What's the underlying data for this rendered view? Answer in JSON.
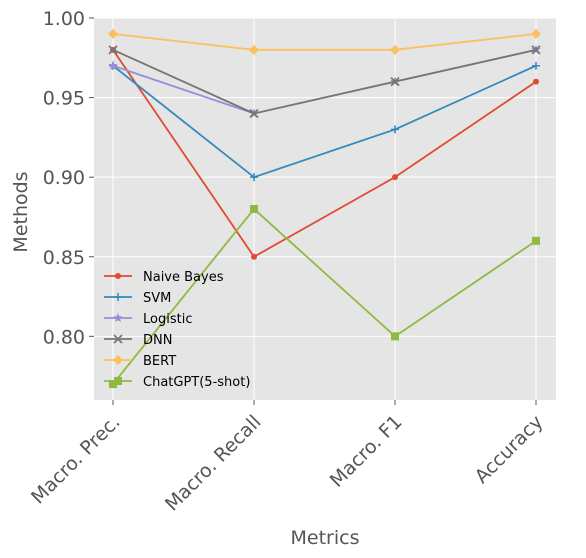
{
  "chart_data": {
    "type": "line",
    "categories": [
      "Macro. Prec.",
      "Macro. Recall",
      "Macro. F1",
      "Accuracy"
    ],
    "xlabel": "Metrics",
    "ylabel": "Methods",
    "ylim": [
      0.76,
      1.0
    ],
    "yticks": [
      "0.80",
      "0.85",
      "0.90",
      "0.95",
      "1.00"
    ],
    "grid": true,
    "legend": "lower-left",
    "series": [
      {
        "name": "Naive Bayes",
        "values": [
          0.98,
          0.85,
          0.9,
          0.96
        ],
        "color": "#E24A33",
        "marker": "dot"
      },
      {
        "name": "SVM",
        "values": [
          0.97,
          0.9,
          0.93,
          0.97
        ],
        "color": "#348ABD",
        "marker": "plus"
      },
      {
        "name": "Logistic",
        "values": [
          0.97,
          0.94,
          0.96,
          0.98
        ],
        "color": "#988ED5",
        "marker": "star"
      },
      {
        "name": "DNN",
        "values": [
          0.98,
          0.94,
          0.96,
          0.98
        ],
        "color": "#777777",
        "marker": "x"
      },
      {
        "name": "BERT",
        "values": [
          0.99,
          0.98,
          0.98,
          0.99
        ],
        "color": "#FBC15E",
        "marker": "diamond"
      },
      {
        "name": "ChatGPT(5-shot)",
        "values": [
          0.77,
          0.88,
          0.8,
          0.86
        ],
        "color": "#8EBA42",
        "marker": "square"
      }
    ]
  }
}
